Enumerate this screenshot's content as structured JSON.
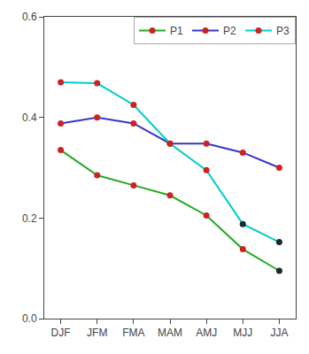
{
  "chart_data": {
    "type": "line",
    "categories": [
      "DJF",
      "JFM",
      "FMA",
      "MAM",
      "AMJ",
      "MJJ",
      "JJA"
    ],
    "series": [
      {
        "name": "P1",
        "color": "#22aa22",
        "colors": [
          "#cc2222",
          "#cc2222",
          "#cc2222",
          "#cc2222",
          "#cc2222",
          "#cc2222",
          "#1a2a2a"
        ],
        "marker": "circle",
        "values": [
          0.335,
          0.285,
          0.265,
          0.245,
          0.205,
          0.138,
          0.095
        ]
      },
      {
        "name": "P2",
        "color": "#3535cc",
        "colors": [
          "#cc2222",
          "#cc2222",
          "#cc2222",
          "#cc2222",
          "#cc2222",
          "#cc2222",
          "#cc2222"
        ],
        "marker": "circle",
        "values": [
          0.388,
          0.4,
          0.388,
          0.348,
          0.348,
          0.33,
          0.3
        ]
      },
      {
        "name": "P3",
        "color": "#00cccc",
        "colors": [
          "#cc2222",
          "#cc2222",
          "#cc2222",
          "#cc2222",
          "#cc2222",
          "#1a2a2a",
          "#1a2a2a"
        ],
        "marker": "circle",
        "values": [
          0.47,
          0.468,
          0.425,
          0.348,
          0.295,
          0.188,
          0.152
        ]
      }
    ],
    "ylim": [
      0.0,
      0.6
    ],
    "yticks": [
      {
        "value": 0.0,
        "label": "0.0"
      },
      0.2,
      0.4,
      0.6
    ],
    "grid": false,
    "legend": "upper right"
  }
}
